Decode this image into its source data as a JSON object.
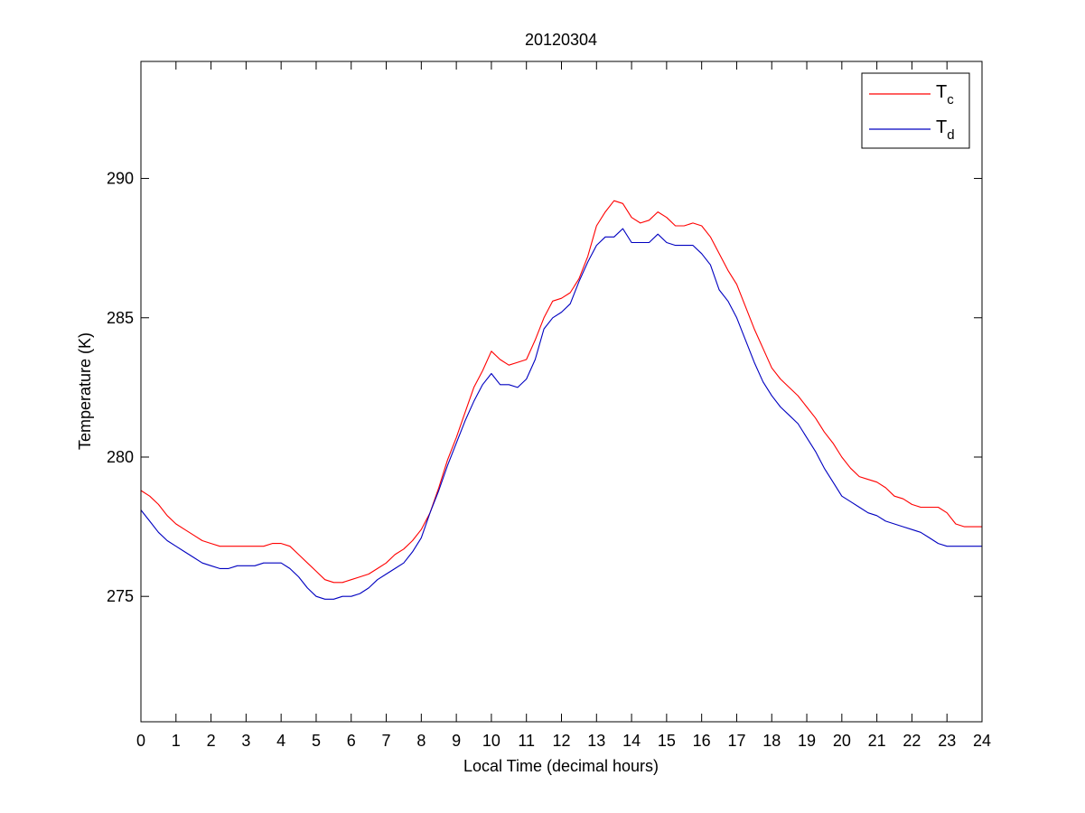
{
  "chart_data": {
    "type": "line",
    "title": "20120304",
    "xlabel": "Local Time (decimal hours)",
    "ylabel": "Temperature (K)",
    "xlim": [
      0,
      24
    ],
    "ylim": [
      270.5,
      294.2
    ],
    "xticks": [
      0,
      1,
      2,
      3,
      4,
      5,
      6,
      7,
      8,
      9,
      10,
      11,
      12,
      13,
      14,
      15,
      16,
      17,
      18,
      19,
      20,
      21,
      22,
      23,
      24
    ],
    "xtick_labels": [
      "0",
      "1",
      "2",
      "3",
      "4",
      "5",
      "6",
      "7",
      "8",
      "9",
      "10",
      "11",
      "12",
      "13",
      "14",
      "15",
      "16",
      "17",
      "18",
      "19",
      "20",
      "21",
      "22",
      "23",
      "24"
    ],
    "yticks": [
      275,
      280,
      285,
      290
    ],
    "ytick_labels": [
      "275",
      "280",
      "285",
      "290"
    ],
    "grid": false,
    "legend_position": "top-right",
    "series": [
      {
        "name": "T",
        "name_subscript": "c",
        "color": "#ff0000",
        "x": [
          0,
          0.25,
          0.5,
          0.75,
          1,
          1.25,
          1.5,
          1.75,
          2,
          2.25,
          2.5,
          2.75,
          3,
          3.25,
          3.5,
          3.75,
          4,
          4.25,
          4.5,
          4.75,
          5,
          5.25,
          5.5,
          5.75,
          6,
          6.25,
          6.5,
          6.75,
          7,
          7.25,
          7.5,
          7.75,
          8,
          8.25,
          8.5,
          8.75,
          9,
          9.25,
          9.5,
          9.75,
          10,
          10.25,
          10.5,
          10.75,
          11,
          11.25,
          11.5,
          11.75,
          12,
          12.25,
          12.5,
          12.75,
          13,
          13.25,
          13.5,
          13.75,
          14,
          14.25,
          14.5,
          14.75,
          15,
          15.25,
          15.5,
          15.75,
          16,
          16.25,
          16.5,
          16.75,
          17,
          17.25,
          17.5,
          17.75,
          18,
          18.25,
          18.5,
          18.75,
          19,
          19.25,
          19.5,
          19.75,
          20,
          20.25,
          20.5,
          20.75,
          21,
          21.25,
          21.5,
          21.75,
          22,
          22.25,
          22.5,
          22.75,
          23,
          23.25,
          23.5,
          23.75,
          24
        ],
        "y": [
          278.8,
          278.6,
          278.3,
          277.9,
          277.6,
          277.4,
          277.2,
          277.0,
          276.9,
          276.8,
          276.8,
          276.8,
          276.8,
          276.8,
          276.8,
          276.9,
          276.9,
          276.8,
          276.5,
          276.2,
          275.9,
          275.6,
          275.5,
          275.5,
          275.6,
          275.7,
          275.8,
          276.0,
          276.2,
          276.5,
          276.7,
          277.0,
          277.4,
          278.0,
          278.9,
          279.9,
          280.7,
          281.6,
          282.5,
          283.1,
          283.8,
          283.5,
          283.3,
          283.4,
          283.5,
          284.2,
          285.0,
          285.6,
          285.7,
          285.9,
          286.4,
          287.2,
          288.3,
          288.8,
          289.2,
          289.1,
          288.6,
          288.4,
          288.5,
          288.8,
          288.6,
          288.3,
          288.3,
          288.4,
          288.3,
          287.9,
          287.3,
          286.7,
          286.2,
          285.4,
          284.6,
          283.9,
          283.2,
          282.8,
          282.5,
          282.2,
          281.8,
          281.4,
          280.9,
          280.5,
          280.0,
          279.6,
          279.3,
          279.2,
          279.1,
          278.9,
          278.6,
          278.5,
          278.3,
          278.2,
          278.2,
          278.2,
          278.0,
          277.6,
          277.5,
          277.5,
          277.5
        ]
      },
      {
        "name": "T",
        "name_subscript": "d",
        "color": "#0000c0",
        "x": [
          0,
          0.25,
          0.5,
          0.75,
          1,
          1.25,
          1.5,
          1.75,
          2,
          2.25,
          2.5,
          2.75,
          3,
          3.25,
          3.5,
          3.75,
          4,
          4.25,
          4.5,
          4.75,
          5,
          5.25,
          5.5,
          5.75,
          6,
          6.25,
          6.5,
          6.75,
          7,
          7.25,
          7.5,
          7.75,
          8,
          8.25,
          8.5,
          8.75,
          9,
          9.25,
          9.5,
          9.75,
          10,
          10.25,
          10.5,
          10.75,
          11,
          11.25,
          11.5,
          11.75,
          12,
          12.25,
          12.5,
          12.75,
          13,
          13.25,
          13.5,
          13.75,
          14,
          14.25,
          14.5,
          14.75,
          15,
          15.25,
          15.5,
          15.75,
          16,
          16.25,
          16.5,
          16.75,
          17,
          17.25,
          17.5,
          17.75,
          18,
          18.25,
          18.5,
          18.75,
          19,
          19.25,
          19.5,
          19.75,
          20,
          20.25,
          20.5,
          20.75,
          21,
          21.25,
          21.5,
          21.75,
          22,
          22.25,
          22.5,
          22.75,
          23,
          23.25,
          23.5,
          23.75,
          24
        ],
        "y": [
          278.1,
          277.7,
          277.3,
          277.0,
          276.8,
          276.6,
          276.4,
          276.2,
          276.1,
          276.0,
          276.0,
          276.1,
          276.1,
          276.1,
          276.2,
          276.2,
          276.2,
          276.0,
          275.7,
          275.3,
          275.0,
          274.9,
          274.9,
          275.0,
          275.0,
          275.1,
          275.3,
          275.6,
          275.8,
          276.0,
          276.2,
          276.6,
          277.1,
          278.0,
          278.8,
          279.7,
          280.5,
          281.3,
          282.0,
          282.6,
          283.0,
          282.6,
          282.6,
          282.5,
          282.8,
          283.5,
          284.6,
          285.0,
          285.2,
          285.5,
          286.3,
          287.0,
          287.6,
          287.9,
          287.9,
          288.2,
          287.7,
          287.7,
          287.7,
          288.0,
          287.7,
          287.6,
          287.6,
          287.6,
          287.3,
          286.9,
          286.0,
          285.6,
          285.0,
          284.2,
          283.4,
          282.7,
          282.2,
          281.8,
          281.5,
          281.2,
          280.7,
          280.2,
          279.6,
          279.1,
          278.6,
          278.4,
          278.2,
          278.0,
          277.9,
          277.7,
          277.6,
          277.5,
          277.4,
          277.3,
          277.1,
          276.9,
          276.8,
          276.8,
          276.8,
          276.8,
          276.8
        ]
      }
    ]
  }
}
